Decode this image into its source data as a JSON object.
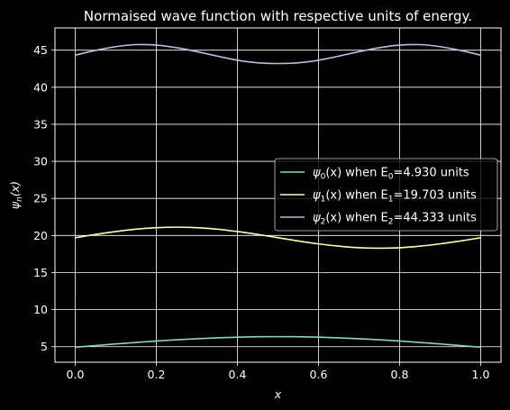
{
  "chart_data": {
    "type": "line",
    "title": "Normaised wave function with respective units of energy.",
    "xlabel": "x",
    "ylabel": "ψ_n(x)",
    "xlim": [
      -0.05,
      1.05
    ],
    "ylim": [
      2.9,
      48.0
    ],
    "xticks": [
      0.0,
      0.2,
      0.4,
      0.6,
      0.8,
      1.0
    ],
    "xtick_labels": [
      "0.0",
      "0.2",
      "0.4",
      "0.6",
      "0.8",
      "1.0"
    ],
    "yticks": [
      5,
      10,
      15,
      20,
      25,
      30,
      35,
      40,
      45
    ],
    "ytick_labels": [
      "5",
      "10",
      "15",
      "20",
      "25",
      "30",
      "35",
      "40",
      "45"
    ],
    "grid": true,
    "legend_position": "center-right",
    "background": "#000000",
    "foreground": "#ffffff",
    "series": [
      {
        "name": "ψ0(x) when E0=4.930 units",
        "legend_parts": [
          "ψ",
          "0",
          "(x) when E",
          "0",
          "=4.930 units"
        ],
        "color": "#8dd3c7",
        "x": [
          0.0,
          0.05,
          0.1,
          0.15,
          0.2,
          0.25,
          0.3,
          0.35,
          0.4,
          0.45,
          0.5,
          0.55,
          0.6,
          0.65,
          0.7,
          0.75,
          0.8,
          0.85,
          0.9,
          0.95,
          1.0
        ],
        "y": [
          4.93,
          5.15,
          5.37,
          5.57,
          5.76,
          5.93,
          6.07,
          6.19,
          6.28,
          6.34,
          6.35,
          6.34,
          6.28,
          6.19,
          6.07,
          5.93,
          5.76,
          5.57,
          5.37,
          5.15,
          4.93
        ]
      },
      {
        "name": "ψ1(x) when E1=19.703 units",
        "legend_parts": [
          "ψ",
          "1",
          "(x) when E",
          "1",
          "=19.703 units"
        ],
        "color": "#feffb3",
        "x": [
          0.0,
          0.05,
          0.1,
          0.15,
          0.2,
          0.25,
          0.3,
          0.35,
          0.4,
          0.45,
          0.5,
          0.55,
          0.6,
          0.65,
          0.7,
          0.75,
          0.8,
          0.85,
          0.9,
          0.95,
          1.0
        ],
        "y": [
          19.7,
          20.14,
          20.53,
          20.85,
          21.05,
          21.12,
          21.05,
          20.85,
          20.53,
          20.14,
          19.7,
          19.26,
          18.87,
          18.56,
          18.35,
          18.28,
          18.35,
          18.56,
          18.87,
          19.26,
          19.7
        ]
      },
      {
        "name": "ψ2(x) when E2=44.333 units",
        "legend_parts": [
          "ψ",
          "2",
          "(x) when E",
          "2",
          "=44.333 units"
        ],
        "color": "#bfbbd9",
        "x": [
          0.0,
          0.05,
          0.1,
          0.15,
          0.2,
          0.25,
          0.3,
          0.35,
          0.4,
          0.45,
          0.5,
          0.55,
          0.6,
          0.65,
          0.7,
          0.75,
          0.8,
          0.85,
          0.9,
          0.95,
          1.0
        ],
        "y": [
          44.33,
          44.97,
          45.48,
          45.75,
          45.68,
          45.33,
          44.8,
          44.2,
          43.65,
          43.3,
          43.2,
          43.3,
          43.65,
          44.2,
          44.8,
          45.33,
          45.68,
          45.75,
          45.48,
          44.97,
          44.33
        ]
      }
    ]
  }
}
